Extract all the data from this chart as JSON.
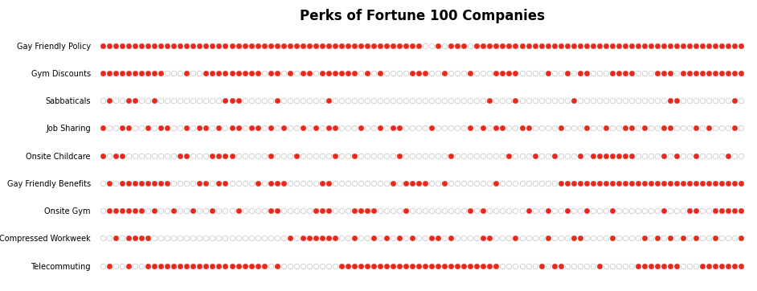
{
  "title": "Perks of Fortune 100 Companies",
  "categories": [
    "Gay Friendly Policy",
    "Gym Discounts",
    "Sabbaticals",
    "Job Sharing",
    "Onsite Childcare",
    "Gay Friendly Benefits",
    "Onsite Gym",
    "Compressed Workweek",
    "Telecommuting"
  ],
  "n_companies": 100,
  "filled_color": "#e8291c",
  "empty_edge_color": "#cccccc",
  "empty_face": "#ffffff",
  "title_fontsize": 12,
  "rows": {
    "Gay Friendly Policy": [
      1,
      1,
      1,
      1,
      1,
      1,
      1,
      1,
      1,
      1,
      1,
      1,
      1,
      1,
      1,
      1,
      1,
      1,
      1,
      1,
      1,
      1,
      1,
      1,
      1,
      1,
      1,
      1,
      1,
      1,
      1,
      1,
      1,
      1,
      1,
      1,
      1,
      1,
      1,
      1,
      1,
      1,
      1,
      1,
      1,
      1,
      1,
      1,
      1,
      1,
      0,
      0,
      1,
      0,
      1,
      1,
      1,
      0,
      1,
      1,
      1,
      1,
      1,
      1,
      1,
      1,
      1,
      1,
      1,
      1,
      1,
      1,
      1,
      1,
      1,
      1,
      1,
      1,
      1,
      1,
      1,
      1,
      1,
      1,
      1,
      1,
      1,
      1,
      1,
      1,
      1,
      1,
      1,
      1,
      1,
      1,
      1,
      1,
      1,
      1
    ],
    "Gym Discounts": [
      1,
      1,
      1,
      1,
      1,
      1,
      1,
      1,
      1,
      1,
      0,
      0,
      0,
      1,
      0,
      0,
      1,
      1,
      1,
      1,
      1,
      1,
      1,
      1,
      1,
      0,
      1,
      1,
      0,
      1,
      0,
      1,
      1,
      0,
      1,
      1,
      1,
      1,
      1,
      1,
      0,
      1,
      0,
      1,
      0,
      0,
      0,
      0,
      1,
      1,
      1,
      0,
      0,
      1,
      0,
      0,
      0,
      1,
      0,
      0,
      0,
      1,
      1,
      1,
      1,
      0,
      0,
      0,
      0,
      1,
      0,
      0,
      1,
      0,
      1,
      1,
      0,
      0,
      0,
      1,
      1,
      1,
      1,
      0,
      0,
      0,
      1,
      1,
      1,
      0,
      1,
      1,
      1,
      1,
      1,
      1,
      1,
      1,
      1,
      1
    ],
    "Sabbaticals": [
      0,
      1,
      0,
      0,
      1,
      1,
      0,
      0,
      1,
      0,
      0,
      0,
      0,
      0,
      0,
      0,
      0,
      0,
      0,
      1,
      1,
      1,
      0,
      0,
      0,
      0,
      0,
      1,
      0,
      0,
      0,
      0,
      0,
      0,
      0,
      1,
      0,
      0,
      0,
      0,
      0,
      0,
      0,
      0,
      0,
      0,
      0,
      0,
      0,
      0,
      0,
      0,
      0,
      0,
      0,
      0,
      0,
      0,
      0,
      0,
      1,
      0,
      0,
      0,
      1,
      0,
      0,
      0,
      0,
      0,
      0,
      0,
      0,
      1,
      0,
      0,
      0,
      0,
      0,
      0,
      0,
      0,
      0,
      0,
      0,
      0,
      0,
      0,
      1,
      1,
      0,
      0,
      0,
      0,
      0,
      0,
      0,
      0,
      1,
      0
    ],
    "Job Sharing": [
      1,
      0,
      0,
      1,
      1,
      0,
      0,
      1,
      0,
      1,
      1,
      0,
      0,
      1,
      0,
      1,
      1,
      0,
      1,
      0,
      1,
      1,
      0,
      1,
      1,
      0,
      1,
      0,
      1,
      0,
      0,
      1,
      0,
      1,
      0,
      1,
      1,
      0,
      0,
      0,
      1,
      0,
      0,
      1,
      0,
      1,
      1,
      0,
      0,
      0,
      0,
      1,
      0,
      0,
      0,
      0,
      0,
      1,
      0,
      1,
      0,
      1,
      1,
      0,
      0,
      1,
      1,
      0,
      0,
      0,
      0,
      1,
      0,
      0,
      0,
      1,
      0,
      0,
      1,
      0,
      0,
      1,
      1,
      0,
      1,
      0,
      0,
      1,
      1,
      0,
      0,
      0,
      1,
      0,
      1,
      0,
      0,
      0,
      1,
      0
    ],
    "Onsite Childcare": [
      1,
      0,
      1,
      1,
      0,
      0,
      0,
      0,
      0,
      0,
      0,
      0,
      1,
      1,
      0,
      0,
      0,
      1,
      1,
      1,
      1,
      0,
      0,
      0,
      0,
      0,
      1,
      0,
      0,
      0,
      1,
      0,
      0,
      0,
      0,
      0,
      1,
      0,
      0,
      1,
      0,
      0,
      0,
      0,
      0,
      0,
      1,
      0,
      0,
      0,
      0,
      0,
      0,
      0,
      1,
      0,
      0,
      0,
      0,
      0,
      0,
      0,
      0,
      1,
      0,
      0,
      0,
      1,
      0,
      0,
      1,
      0,
      0,
      0,
      1,
      0,
      1,
      1,
      1,
      1,
      1,
      1,
      1,
      0,
      0,
      0,
      0,
      1,
      0,
      1,
      0,
      0,
      1,
      0,
      0,
      0,
      0,
      1,
      0,
      0
    ],
    "Gay Friendly Benefits": [
      0,
      1,
      0,
      1,
      1,
      1,
      1,
      1,
      1,
      1,
      1,
      0,
      0,
      0,
      0,
      1,
      1,
      0,
      1,
      1,
      0,
      0,
      0,
      0,
      1,
      0,
      1,
      1,
      1,
      0,
      0,
      0,
      0,
      0,
      1,
      1,
      0,
      0,
      0,
      0,
      0,
      0,
      0,
      0,
      0,
      1,
      0,
      1,
      1,
      1,
      1,
      0,
      0,
      1,
      0,
      0,
      0,
      0,
      0,
      0,
      0,
      1,
      0,
      0,
      0,
      0,
      0,
      0,
      0,
      0,
      0,
      1,
      1,
      1,
      1,
      1,
      1,
      1,
      1,
      1,
      1,
      1,
      1,
      1,
      1,
      1,
      1,
      1,
      1,
      1,
      1,
      1,
      1,
      1,
      1,
      1,
      1,
      1,
      1,
      1
    ],
    "Onsite Gym": [
      0,
      1,
      1,
      1,
      1,
      1,
      1,
      0,
      1,
      0,
      0,
      1,
      0,
      0,
      1,
      0,
      0,
      1,
      0,
      0,
      0,
      1,
      0,
      0,
      0,
      0,
      1,
      1,
      0,
      0,
      0,
      0,
      0,
      1,
      1,
      1,
      0,
      0,
      0,
      1,
      1,
      1,
      1,
      0,
      0,
      0,
      0,
      1,
      0,
      0,
      0,
      0,
      0,
      0,
      0,
      0,
      0,
      1,
      0,
      1,
      0,
      0,
      0,
      0,
      0,
      0,
      1,
      0,
      0,
      1,
      0,
      0,
      1,
      0,
      0,
      1,
      0,
      0,
      0,
      1,
      0,
      0,
      0,
      0,
      0,
      0,
      0,
      1,
      0,
      0,
      0,
      1,
      1,
      0,
      0,
      1,
      1,
      1,
      1,
      1
    ],
    "Compressed Workweek": [
      0,
      0,
      1,
      0,
      1,
      1,
      1,
      1,
      0,
      0,
      0,
      0,
      0,
      0,
      0,
      0,
      0,
      0,
      0,
      0,
      0,
      0,
      0,
      0,
      0,
      0,
      0,
      0,
      0,
      1,
      0,
      1,
      1,
      1,
      1,
      1,
      1,
      0,
      0,
      1,
      0,
      0,
      1,
      0,
      1,
      0,
      1,
      0,
      1,
      0,
      0,
      1,
      1,
      0,
      1,
      0,
      0,
      0,
      0,
      1,
      1,
      0,
      0,
      0,
      1,
      0,
      0,
      0,
      0,
      1,
      0,
      0,
      0,
      1,
      1,
      0,
      0,
      0,
      0,
      1,
      0,
      0,
      0,
      0,
      1,
      0,
      1,
      0,
      1,
      0,
      1,
      0,
      1,
      0,
      0,
      1,
      0,
      0,
      0,
      1
    ],
    "Telecommuting": [
      0,
      1,
      0,
      0,
      1,
      0,
      0,
      1,
      1,
      1,
      1,
      1,
      1,
      1,
      1,
      1,
      1,
      1,
      1,
      1,
      1,
      1,
      1,
      1,
      1,
      1,
      0,
      1,
      0,
      0,
      0,
      0,
      0,
      0,
      0,
      0,
      0,
      1,
      1,
      1,
      1,
      1,
      1,
      1,
      1,
      1,
      1,
      1,
      1,
      1,
      1,
      1,
      1,
      1,
      1,
      1,
      1,
      1,
      1,
      1,
      1,
      1,
      0,
      0,
      0,
      0,
      0,
      0,
      1,
      0,
      1,
      1,
      0,
      0,
      0,
      0,
      0,
      1,
      0,
      0,
      0,
      0,
      0,
      1,
      1,
      1,
      1,
      1,
      1,
      1,
      0,
      0,
      0,
      1,
      1,
      1,
      1,
      1,
      1,
      1
    ]
  }
}
